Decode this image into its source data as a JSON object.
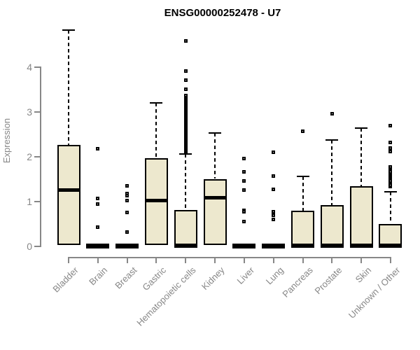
{
  "chart_data": {
    "type": "boxplot",
    "title": "ENSG00000252478 - U7",
    "ylabel": "Expression",
    "xlabel": "",
    "yticks": [
      0,
      1,
      2,
      3,
      4
    ],
    "ylim": [
      0,
      4.9
    ],
    "grid": false,
    "legend": "none",
    "categories": [
      "Bladder",
      "Brain",
      "Breast",
      "Gastric",
      "Hematopoietic cells",
      "Kidney",
      "Liver",
      "Lung",
      "Pancreas",
      "Prostate",
      "Skin",
      "Unknown / Other"
    ],
    "boxes": [
      {
        "category": "Bladder",
        "whisker_low": 0.03,
        "q1": 0.03,
        "median": 1.26,
        "q3": 2.26,
        "whisker_high": 4.82,
        "outliers": []
      },
      {
        "category": "Brain",
        "whisker_low": 0,
        "q1": 0,
        "median": 0,
        "q3": 0.03,
        "whisker_high": 0.03,
        "outliers": [
          2.17,
          1.07,
          0.93,
          0.42
        ]
      },
      {
        "category": "Breast",
        "whisker_low": 0,
        "q1": 0,
        "median": 0,
        "q3": 0.03,
        "whisker_high": 0.03,
        "outliers": [
          1.34,
          1.17,
          1.12,
          1.01,
          0.75,
          0.31
        ]
      },
      {
        "category": "Gastric",
        "whisker_low": 0.02,
        "q1": 0.02,
        "median": 1.03,
        "q3": 1.96,
        "whisker_high": 3.2,
        "outliers": []
      },
      {
        "category": "Hematopoietic cells",
        "whisker_low": 0.02,
        "q1": 0.02,
        "median": 0.02,
        "q3": 0.81,
        "whisker_high": 2.06,
        "outliers": [
          2.08,
          2.11,
          2.14,
          2.17,
          2.2,
          2.23,
          2.27,
          2.3,
          2.33,
          2.36,
          2.39,
          2.42,
          2.45,
          2.48,
          2.52,
          2.55,
          2.58,
          2.61,
          2.64,
          2.67,
          2.7,
          2.73,
          2.77,
          2.8,
          2.83,
          2.86,
          2.89,
          2.92,
          2.95,
          2.98,
          3.02,
          3.05,
          3.08,
          3.11,
          3.14,
          3.17,
          3.2,
          3.23,
          3.27,
          3.3,
          3.33,
          3.36,
          3.5,
          3.7,
          3.9,
          4.58
        ]
      },
      {
        "category": "Kidney",
        "whisker_low": 0.02,
        "q1": 0.02,
        "median": 1.1,
        "q3": 1.5,
        "whisker_high": 2.53,
        "outliers": []
      },
      {
        "category": "Liver",
        "whisker_low": 0,
        "q1": 0,
        "median": 0,
        "q3": 0.03,
        "whisker_high": 0.03,
        "outliers": [
          1.95,
          1.66,
          1.46,
          1.25,
          0.8,
          0.76,
          0.55
        ]
      },
      {
        "category": "Lung",
        "whisker_low": 0,
        "q1": 0,
        "median": 0,
        "q3": 0.03,
        "whisker_high": 0.03,
        "outliers": [
          2.1,
          1.57,
          1.26,
          0.76,
          0.68,
          0.6
        ]
      },
      {
        "category": "Pancreas",
        "whisker_low": 0.02,
        "q1": 0.02,
        "median": 0.02,
        "q3": 0.79,
        "whisker_high": 1.55,
        "outliers": [
          2.56
        ]
      },
      {
        "category": "Prostate",
        "whisker_low": 0.02,
        "q1": 0.02,
        "median": 0.02,
        "q3": 0.92,
        "whisker_high": 2.37,
        "outliers": [
          2.95
        ]
      },
      {
        "category": "Skin",
        "whisker_low": 0.02,
        "q1": 0.02,
        "median": 0.02,
        "q3": 1.33,
        "whisker_high": 2.63,
        "outliers": []
      },
      {
        "category": "Unknown / Other",
        "whisker_low": 0.02,
        "q1": 0.02,
        "median": 0.02,
        "q3": 0.5,
        "whisker_high": 1.21,
        "outliers": [
          1.33,
          1.36,
          1.4,
          1.43,
          1.46,
          1.5,
          1.53,
          1.56,
          1.6,
          1.63,
          1.66,
          1.7,
          1.73,
          1.76,
          2.11,
          2.19,
          2.32,
          2.68
        ]
      }
    ],
    "colors": {
      "box_fill": "#EDE8CE",
      "box_border": "#000000",
      "median": "#000000",
      "whisker": "#000000",
      "axis": "#878787",
      "tick_text": "#878787",
      "title_text": "#000000",
      "background": "#FFFFFF"
    }
  }
}
